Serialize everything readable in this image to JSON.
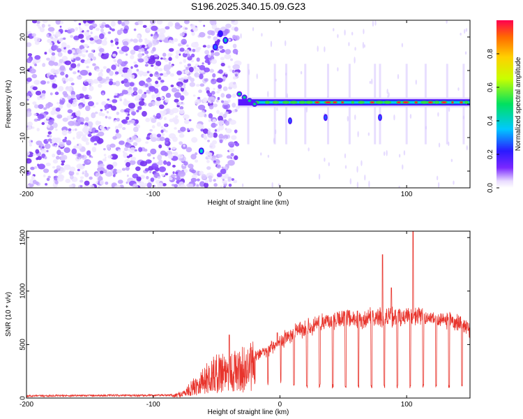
{
  "chart_data": [
    {
      "type": "heatmap",
      "title": "S196.2025.340.15.09.G23",
      "xlabel": "Height of straight line (km)",
      "ylabel": "Frequency (Hz)",
      "xlim": [
        -200,
        150
      ],
      "ylim": [
        -25,
        25
      ],
      "x_ticks": [
        -200,
        -100,
        0,
        100
      ],
      "y_ticks": [
        -20,
        -10,
        0,
        10,
        20
      ],
      "colorbar": {
        "label": "Normalized spectral amplitude",
        "range": [
          0,
          1
        ],
        "ticks": [
          "0.0",
          "0.2",
          "0.4",
          "0.6",
          "0.8"
        ],
        "colormap": "rainbow (purple to red)"
      },
      "features": {
        "noise_region_km": [
          -200,
          -33
        ],
        "signal_start_km": -33,
        "signal_frequency_hz": 0.5
      }
    },
    {
      "type": "line",
      "xlabel": "Height of straight line (km)",
      "ylabel": "SNR (10 * v/v)",
      "xlim": [
        -200,
        150
      ],
      "ylim": [
        0,
        1560
      ],
      "x_ticks": [
        -200,
        -100,
        0,
        100
      ],
      "y_ticks": [
        0,
        500,
        1000,
        1500
      ],
      "color": "#e8342c",
      "envelope": {
        "x": [
          -200,
          -150,
          -100,
          -85,
          -75,
          -65,
          -55,
          -45,
          -35,
          -25,
          -15,
          -5,
          5,
          15,
          25,
          35,
          45,
          55,
          65,
          75,
          85,
          95,
          105,
          115,
          125,
          135,
          145,
          150
        ],
        "y": [
          10,
          15,
          15,
          20,
          60,
          170,
          260,
          330,
          320,
          360,
          410,
          480,
          560,
          640,
          680,
          710,
          730,
          740,
          740,
          750,
          760,
          760,
          760,
          750,
          740,
          730,
          700,
          600
        ]
      },
      "spikes": [
        {
          "x": -40,
          "y": 590
        },
        {
          "x": -2,
          "y": 610
        },
        {
          "x": 81,
          "y": 1340
        },
        {
          "x": 88,
          "y": 1030
        },
        {
          "x": 105,
          "y": 1560
        }
      ]
    }
  ]
}
